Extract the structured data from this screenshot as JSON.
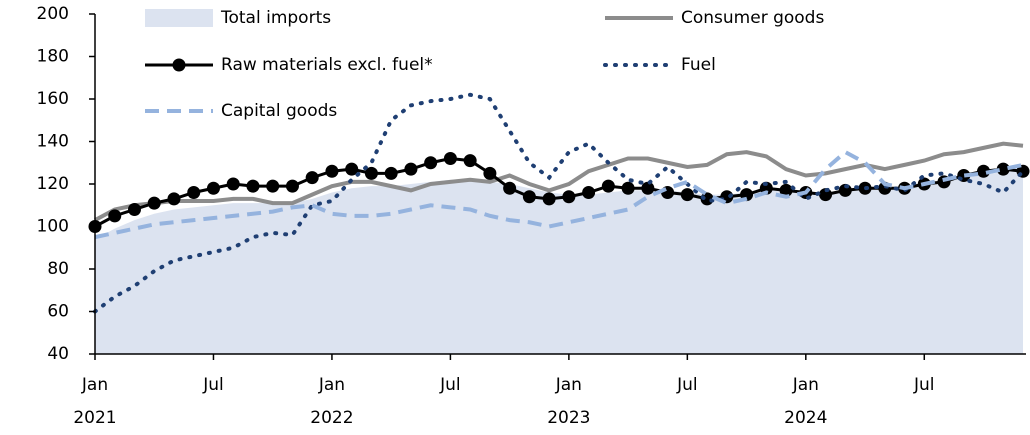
{
  "chart_data": {
    "type": "line",
    "categories": [
      "Jan",
      null,
      null,
      null,
      null,
      null,
      "Jul",
      null,
      null,
      null,
      null,
      null,
      "Jan",
      null,
      null,
      null,
      null,
      null,
      "Jul",
      null,
      null,
      null,
      null,
      null,
      "Jan",
      null,
      null,
      null,
      null,
      null,
      "Jul",
      null,
      null,
      null,
      null,
      null,
      "Jan",
      null,
      null,
      null,
      null,
      null,
      "Jul",
      null,
      null,
      null,
      null,
      null
    ],
    "years": [
      "2021",
      "2022",
      "2023",
      "2024"
    ],
    "ylim": [
      40,
      200
    ],
    "yticks": [
      40,
      60,
      80,
      100,
      120,
      140,
      160,
      180,
      200
    ],
    "series": [
      {
        "name": "Total imports",
        "color": "#dce3f0",
        "style": "area",
        "values": [
          94,
          99,
          103,
          106,
          108,
          109,
          110,
          111,
          111,
          111,
          111,
          113,
          116,
          118,
          119,
          119,
          120,
          121,
          122,
          122,
          121,
          120,
          118,
          116,
          115,
          115,
          116,
          117,
          117,
          117,
          116,
          115,
          115,
          116,
          117,
          117,
          116,
          116,
          117,
          118,
          118,
          119,
          120,
          121,
          123,
          124,
          126,
          128
        ]
      },
      {
        "name": "Consumer goods",
        "color": "#8c8c8c",
        "style": "solid",
        "values": [
          103,
          108,
          110,
          111,
          112,
          112,
          112,
          113,
          113,
          111,
          111,
          115,
          119,
          121,
          121,
          119,
          117,
          120,
          121,
          122,
          121,
          124,
          120,
          117,
          120,
          126,
          129,
          132,
          132,
          130,
          128,
          129,
          134,
          135,
          133,
          127,
          124,
          125,
          127,
          129,
          127,
          129,
          131,
          134,
          135,
          137,
          139,
          138
        ]
      },
      {
        "name": "Raw materials excl. fuel*",
        "color": "#000000",
        "style": "markers",
        "values": [
          100,
          105,
          108,
          111,
          113,
          116,
          118,
          120,
          119,
          119,
          119,
          123,
          126,
          127,
          125,
          125,
          127,
          130,
          132,
          131,
          125,
          118,
          114,
          113,
          114,
          116,
          119,
          118,
          118,
          116,
          115,
          113,
          114,
          115,
          118,
          117,
          116,
          115,
          117,
          118,
          118,
          118,
          120,
          121,
          124,
          126,
          127,
          126
        ]
      },
      {
        "name": "Fuel",
        "color": "#1f3f73",
        "style": "dotted",
        "values": [
          60,
          67,
          72,
          79,
          84,
          86,
          88,
          90,
          95,
          97,
          96,
          110,
          112,
          122,
          130,
          150,
          157,
          159,
          160,
          162,
          160,
          145,
          130,
          123,
          135,
          139,
          130,
          122,
          120,
          128,
          120,
          112,
          113,
          121,
          120,
          121,
          113,
          117,
          119,
          118,
          119,
          117,
          124,
          125,
          122,
          120,
          116,
          126
        ]
      },
      {
        "name": "Capital goods",
        "color": "#95b3de",
        "style": "dashed",
        "values": [
          95,
          97,
          99,
          101,
          102,
          103,
          104,
          105,
          106,
          107,
          109,
          110,
          106,
          105,
          105,
          106,
          108,
          110,
          109,
          108,
          105,
          103,
          102,
          100,
          102,
          104,
          106,
          108,
          114,
          118,
          121,
          115,
          111,
          113,
          116,
          114,
          116,
          127,
          135,
          130,
          120,
          118,
          120,
          122,
          124,
          125,
          127,
          129
        ]
      }
    ]
  }
}
